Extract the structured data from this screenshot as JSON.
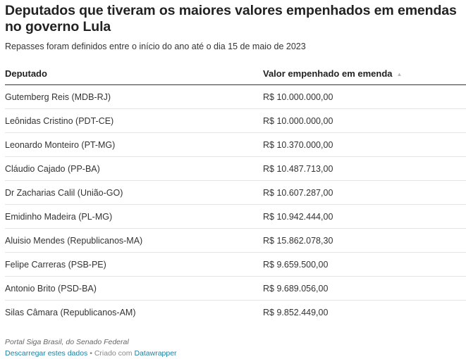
{
  "title": "Deputados que tiveram os maiores valores empenhados em emendas no governo Lula",
  "subtitle": "Repasses foram definidos entre o início do ano até o dia 15 de maio de 2023",
  "chart_data": {
    "type": "table",
    "title": "Deputados que tiveram os maiores valores empenhados em emendas no governo Lula",
    "subtitle": "Repasses foram definidos entre o início do ano até o dia 15 de maio de 2023",
    "columns": [
      "Deputado",
      "Valor empenhado em emenda"
    ],
    "rows": [
      [
        "Gutemberg Reis (MDB-RJ)",
        "R$ 10.000.000,00"
      ],
      [
        "Leônidas Cristino (PDT-CE)",
        "R$ 10.000.000,00"
      ],
      [
        "Leonardo Monteiro (PT-MG)",
        "R$ 10.370.000,00"
      ],
      [
        "Cláudio Cajado (PP-BA)",
        "R$ 10.487.713,00"
      ],
      [
        "Dr Zacharias Calil (União-GO)",
        "R$ 10.607.287,00"
      ],
      [
        "Emidinho Madeira (PL-MG)",
        "R$ 10.942.444,00"
      ],
      [
        "Aluisio Mendes (Republicanos-MA)",
        "R$ 15.862.078,30"
      ],
      [
        "Felipe Carreras (PSB-PE)",
        "R$ 9.659.500,00"
      ],
      [
        "Antonio Brito (PSD-BA)",
        "R$ 9.689.056,00"
      ],
      [
        "Silas Câmara (Republicanos-AM)",
        "R$ 9.852.449,00"
      ]
    ],
    "sorted_column": "Valor empenhado em emenda"
  },
  "footer": {
    "source": "Portal Siga Brasil, do Senado Federal",
    "download_label": "Descarregar estes dados",
    "separator": " • Criado com ",
    "tool_label": "Datawrapper"
  },
  "colors": {
    "link": "#1d81a2",
    "header_rule": "#333333",
    "row_rule": "#e4e4e4"
  },
  "icons": {
    "sort": "sort-ascending-icon"
  }
}
